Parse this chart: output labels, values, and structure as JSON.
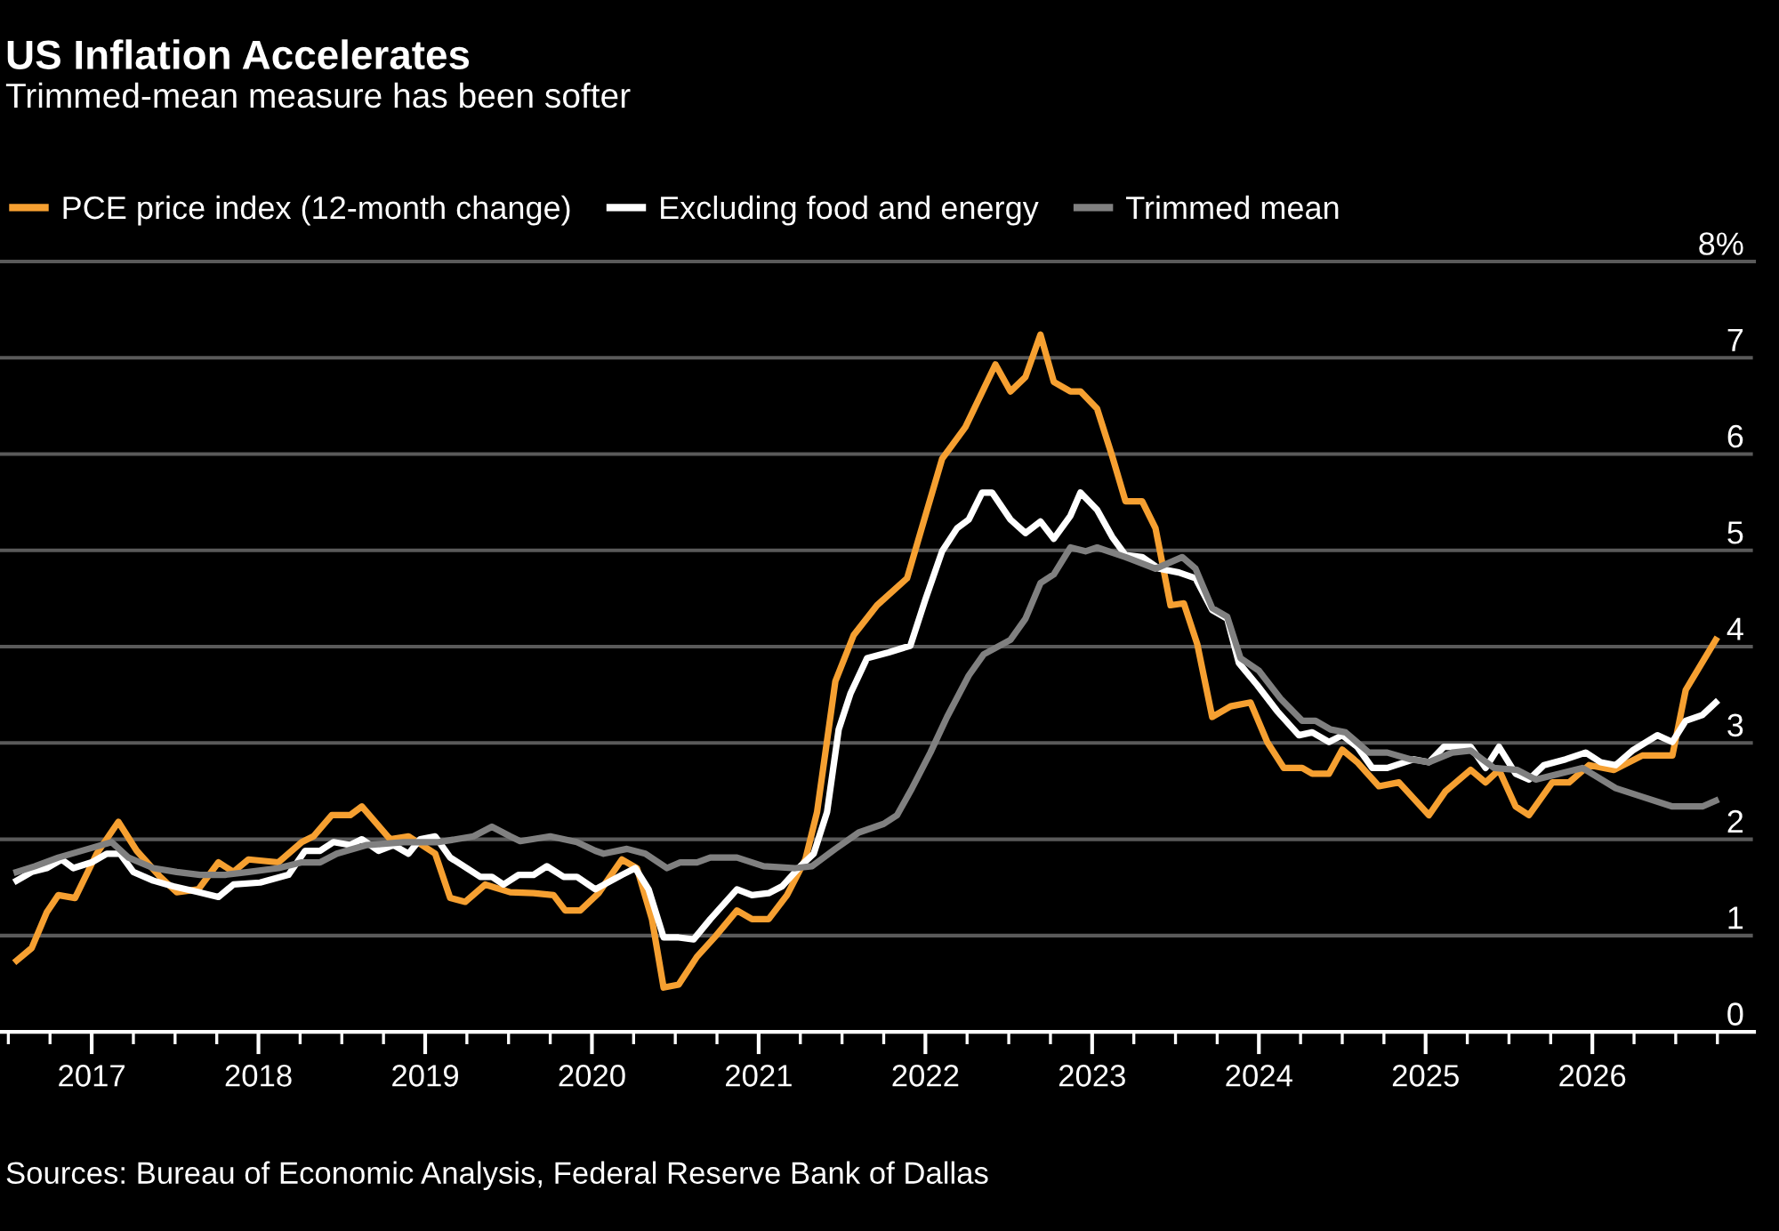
{
  "chart_data": {
    "type": "line",
    "title": "US Inflation Accelerates",
    "subtitle": "Trimmed-mean measure has been softer",
    "annotations": [
      "Sources: Bureau of Economic Analysis, Federal Reserve Bank of Dallas"
    ],
    "legend": "top",
    "grid": "y",
    "line_style": "solid",
    "xlim": [
      2016.45,
      2026.97
    ],
    "xticks": [
      2017,
      2018,
      2019,
      2020,
      2021,
      2022,
      2023,
      2024,
      2025,
      2026
    ],
    "ylim": [
      0,
      8
    ],
    "yticks": [
      0,
      1,
      2,
      3,
      4,
      5,
      6,
      7,
      {
        "value": 8,
        "label": "8%"
      }
    ],
    "series": [
      {
        "name": "PCE price index (12-month change)",
        "color": "#f6a031",
        "x": [
          2016.55,
          2016.64,
          2016.73,
          2016.8,
          2016.9,
          2017.03,
          2017.16,
          2017.27,
          2017.41,
          2017.51,
          2017.64,
          2017.76,
          2017.85,
          2017.94,
          2018.12,
          2018.26,
          2018.33,
          2018.44,
          2018.55,
          2018.62,
          2018.79,
          2018.9,
          2019.06,
          2019.15,
          2019.24,
          2019.36,
          2019.51,
          2019.65,
          2019.77,
          2019.84,
          2019.93,
          2020.04,
          2020.18,
          2020.27,
          2020.36,
          2020.43,
          2020.52,
          2020.63,
          2020.74,
          2020.87,
          2020.96,
          2021.06,
          2021.17,
          2021.28,
          2021.35,
          2021.46,
          2021.57,
          2021.71,
          2021.89,
          2022.0,
          2022.1,
          2022.24,
          2022.42,
          2022.51,
          2022.6,
          2022.69,
          2022.77,
          2022.87,
          2022.93,
          2023.03,
          2023.12,
          2023.2,
          2023.3,
          2023.38,
          2023.47,
          2023.55,
          2023.63,
          2023.72,
          2023.83,
          2023.95,
          2024.05,
          2024.15,
          2024.26,
          2024.32,
          2024.42,
          2024.5,
          2024.59,
          2024.72,
          2024.84,
          2025.02,
          2025.12,
          2025.27,
          2025.36,
          2025.44,
          2025.54,
          2025.62,
          2025.76,
          2025.86,
          2025.98,
          2026.13,
          2026.3,
          2026.48,
          2026.56,
          2026.74
        ],
        "values": [
          0.74,
          0.87,
          1.24,
          1.42,
          1.39,
          1.85,
          2.18,
          1.88,
          1.61,
          1.45,
          1.48,
          1.76,
          1.66,
          1.79,
          1.76,
          1.97,
          2.03,
          2.25,
          2.25,
          2.34,
          2.0,
          2.03,
          1.85,
          1.39,
          1.35,
          1.53,
          1.45,
          1.44,
          1.42,
          1.26,
          1.26,
          1.44,
          1.79,
          1.7,
          1.17,
          0.46,
          0.49,
          0.78,
          0.99,
          1.26,
          1.17,
          1.17,
          1.42,
          1.79,
          2.28,
          3.64,
          4.12,
          4.43,
          4.71,
          5.36,
          5.95,
          6.28,
          6.93,
          6.65,
          6.8,
          7.24,
          6.75,
          6.65,
          6.65,
          6.47,
          5.98,
          5.51,
          5.51,
          5.23,
          4.43,
          4.45,
          4.03,
          3.27,
          3.38,
          3.42,
          3.01,
          2.74,
          2.74,
          2.68,
          2.68,
          2.93,
          2.8,
          2.55,
          2.59,
          2.25,
          2.5,
          2.72,
          2.59,
          2.72,
          2.34,
          2.25,
          2.59,
          2.59,
          2.77,
          2.72,
          2.87,
          2.87,
          3.55,
          4.07
        ]
      },
      {
        "name": "Excluding food and energy",
        "color": "#ffffff",
        "x": [
          2016.55,
          2016.64,
          2016.73,
          2016.82,
          2016.89,
          2017.0,
          2017.09,
          2017.17,
          2017.25,
          2017.37,
          2017.49,
          2017.64,
          2017.76,
          2017.85,
          2018.01,
          2018.18,
          2018.28,
          2018.37,
          2018.45,
          2018.55,
          2018.62,
          2018.72,
          2018.81,
          2018.9,
          2018.97,
          2019.06,
          2019.15,
          2019.33,
          2019.4,
          2019.47,
          2019.56,
          2019.65,
          2019.73,
          2019.83,
          2019.91,
          2020.02,
          2020.18,
          2020.26,
          2020.34,
          2020.43,
          2020.52,
          2020.61,
          2020.71,
          2020.87,
          2020.96,
          2021.06,
          2021.14,
          2021.25,
          2021.33,
          2021.41,
          2021.48,
          2021.55,
          2021.65,
          2021.78,
          2021.91,
          2022.0,
          2022.1,
          2022.19,
          2022.26,
          2022.34,
          2022.4,
          2022.51,
          2022.6,
          2022.69,
          2022.77,
          2022.87,
          2022.93,
          2023.03,
          2023.12,
          2023.2,
          2023.3,
          2023.4,
          2023.52,
          2023.62,
          2023.72,
          2023.81,
          2023.88,
          2023.99,
          2024.11,
          2024.24,
          2024.32,
          2024.42,
          2024.5,
          2024.59,
          2024.68,
          2024.77,
          2024.93,
          2025.02,
          2025.11,
          2025.27,
          2025.36,
          2025.44,
          2025.54,
          2025.62,
          2025.71,
          2025.84,
          2025.96,
          2026.05,
          2026.14,
          2026.24,
          2026.39,
          2026.48,
          2026.56,
          2026.66,
          2026.74
        ],
        "values": [
          1.57,
          1.66,
          1.7,
          1.79,
          1.7,
          1.76,
          1.85,
          1.85,
          1.66,
          1.57,
          1.51,
          1.45,
          1.4,
          1.53,
          1.55,
          1.63,
          1.88,
          1.88,
          1.97,
          1.94,
          2.0,
          1.88,
          1.94,
          1.85,
          2.0,
          2.03,
          1.81,
          1.61,
          1.61,
          1.53,
          1.63,
          1.63,
          1.72,
          1.61,
          1.61,
          1.48,
          1.63,
          1.7,
          1.48,
          0.98,
          0.98,
          0.96,
          1.17,
          1.48,
          1.42,
          1.44,
          1.51,
          1.72,
          1.85,
          2.28,
          3.14,
          3.51,
          3.88,
          3.94,
          4.01,
          4.49,
          4.99,
          5.23,
          5.32,
          5.6,
          5.6,
          5.32,
          5.18,
          5.3,
          5.12,
          5.36,
          5.6,
          5.42,
          5.14,
          4.95,
          4.93,
          4.81,
          4.77,
          4.71,
          4.38,
          4.29,
          3.83,
          3.6,
          3.33,
          3.08,
          3.11,
          3.01,
          3.08,
          2.96,
          2.74,
          2.74,
          2.83,
          2.8,
          2.96,
          2.96,
          2.74,
          2.96,
          2.68,
          2.62,
          2.77,
          2.83,
          2.9,
          2.8,
          2.77,
          2.92,
          3.08,
          3.01,
          3.23,
          3.29,
          3.42
        ]
      },
      {
        "name": "Trimmed mean",
        "color": "#808080",
        "x": [
          2016.55,
          2016.66,
          2016.8,
          2016.98,
          2017.12,
          2017.22,
          2017.37,
          2017.51,
          2017.65,
          2017.8,
          2017.94,
          2018.12,
          2018.26,
          2018.37,
          2018.47,
          2018.65,
          2018.87,
          2019.08,
          2019.29,
          2019.4,
          2019.51,
          2019.57,
          2019.75,
          2019.91,
          2020.02,
          2020.07,
          2020.21,
          2020.32,
          2020.45,
          2020.53,
          2020.63,
          2020.71,
          2020.87,
          2021.03,
          2021.22,
          2021.32,
          2021.46,
          2021.6,
          2021.75,
          2021.83,
          2021.92,
          2022.03,
          2022.13,
          2022.26,
          2022.35,
          2022.51,
          2022.6,
          2022.69,
          2022.77,
          2022.87,
          2022.96,
          2023.03,
          2023.2,
          2023.38,
          2023.54,
          2023.62,
          2023.72,
          2023.81,
          2023.89,
          2024.0,
          2024.13,
          2024.26,
          2024.34,
          2024.43,
          2024.52,
          2024.66,
          2024.77,
          2024.91,
          2025.02,
          2025.16,
          2025.27,
          2025.41,
          2025.55,
          2025.66,
          2025.8,
          2025.94,
          2026.14,
          2026.3,
          2026.48,
          2026.59,
          2026.66,
          2026.74
        ],
        "values": [
          1.66,
          1.72,
          1.81,
          1.9,
          1.97,
          1.81,
          1.7,
          1.66,
          1.63,
          1.63,
          1.66,
          1.7,
          1.76,
          1.76,
          1.85,
          1.94,
          1.97,
          1.97,
          2.03,
          2.13,
          2.03,
          1.98,
          2.03,
          1.97,
          1.88,
          1.85,
          1.9,
          1.85,
          1.7,
          1.76,
          1.76,
          1.81,
          1.81,
          1.72,
          1.7,
          1.72,
          1.9,
          2.07,
          2.16,
          2.25,
          2.53,
          2.9,
          3.27,
          3.7,
          3.92,
          4.07,
          4.29,
          4.66,
          4.75,
          5.03,
          4.99,
          5.03,
          4.93,
          4.81,
          4.93,
          4.81,
          4.4,
          4.31,
          3.88,
          3.75,
          3.46,
          3.23,
          3.23,
          3.14,
          3.11,
          2.9,
          2.9,
          2.83,
          2.8,
          2.9,
          2.92,
          2.74,
          2.72,
          2.62,
          2.68,
          2.74,
          2.53,
          2.44,
          2.34,
          2.34,
          2.34,
          2.4
        ]
      }
    ]
  }
}
